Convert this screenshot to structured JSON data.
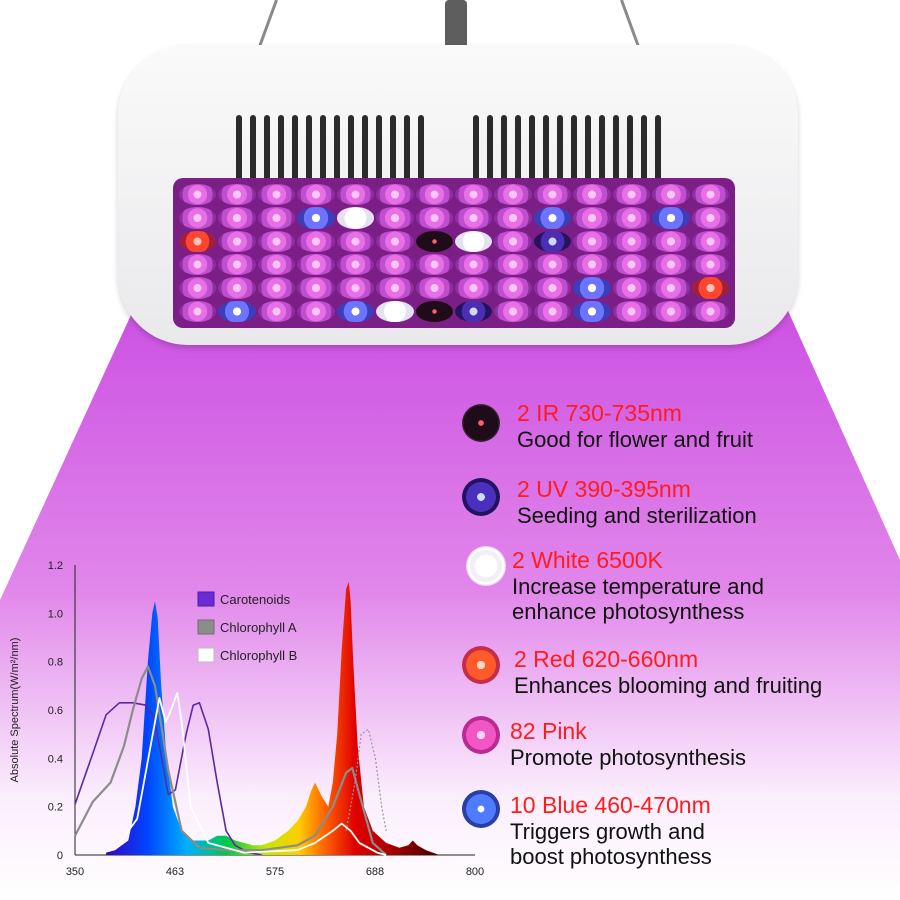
{
  "legend_items": [
    {
      "title": "2 IR  730-735nm",
      "lines": [
        "Good for flower and fruit"
      ],
      "icon": "ir-led-icon"
    },
    {
      "title": "2 UV  390-395nm",
      "lines": [
        "Seeding and sterilization"
      ],
      "icon": "uv-led-icon"
    },
    {
      "title": "2 White  6500K",
      "lines": [
        "Increase temperature and",
        "enhance photosynthess"
      ],
      "icon": "white-led-icon"
    },
    {
      "title": "2 Red  620-660nm",
      "lines": [
        "Enhances blooming and fruiting"
      ],
      "icon": "red-led-icon"
    },
    {
      "title": "82 Pink",
      "lines": [
        "Promote photosynthesis"
      ],
      "icon": "pink-led-icon"
    },
    {
      "title": "10 Blue  460-470nm",
      "lines": [
        "Triggers growth and",
        "boost  photosynthess"
      ],
      "icon": "blue-led-icon"
    }
  ],
  "colors": {
    "title_red": "#ff1c1c",
    "beam_top": "#c53fe0",
    "beam_bottom": "#ffffff",
    "carotenoids": "#5b2a9e",
    "chlorophyll_a": "#8c8c8c",
    "chlorophyll_b": "#ffffff"
  },
  "chart_data": {
    "type": "area",
    "title": "",
    "xlabel": "",
    "ylabel": "Absolute Spectrum(W/m²/nm)",
    "x_tick_labels": [
      "350",
      "463",
      "575",
      "688",
      "800"
    ],
    "y_tick_labels": [
      "0",
      "0.2",
      "0.4",
      "0.6",
      "0.8",
      "1.0",
      "1.2"
    ],
    "xlim": [
      350,
      800
    ],
    "ylim": [
      0,
      1.2
    ],
    "grid": false,
    "legend_position": "top-center",
    "series": [
      {
        "name": "Carotenoids",
        "kind": "line",
        "x": [
          350,
          370,
          385,
          400,
          415,
          430,
          438,
          445,
          455,
          463,
          475,
          483,
          490,
          500,
          510,
          520,
          530,
          545,
          560
        ],
        "y": [
          0.21,
          0.42,
          0.58,
          0.63,
          0.63,
          0.62,
          0.58,
          0.45,
          0.25,
          0.27,
          0.5,
          0.62,
          0.63,
          0.52,
          0.3,
          0.1,
          0.04,
          0.01,
          0.0
        ]
      },
      {
        "name": "Chlorophyll A",
        "kind": "line",
        "x": [
          350,
          370,
          390,
          405,
          415,
          425,
          432,
          440,
          455,
          470,
          490,
          520,
          560,
          600,
          620,
          640,
          655,
          662,
          670,
          685,
          700
        ],
        "y": [
          0.08,
          0.22,
          0.3,
          0.45,
          0.6,
          0.73,
          0.78,
          0.7,
          0.35,
          0.1,
          0.03,
          0.02,
          0.02,
          0.04,
          0.08,
          0.2,
          0.34,
          0.36,
          0.25,
          0.05,
          0.0
        ]
      },
      {
        "name": "Chlorophyll B",
        "kind": "line",
        "x": [
          400,
          420,
          440,
          445,
          452,
          458,
          465,
          470,
          480,
          500,
          540,
          600,
          620,
          640,
          650,
          660,
          670,
          690,
          700
        ],
        "y": [
          0.05,
          0.15,
          0.55,
          0.65,
          0.55,
          0.6,
          0.67,
          0.55,
          0.2,
          0.05,
          0.01,
          0.02,
          0.05,
          0.1,
          0.13,
          0.1,
          0.05,
          0.01,
          0.0
        ]
      },
      {
        "name": "",
        "kind": "led-spectrum",
        "x": [
          385,
          395,
          410,
          418,
          425,
          432,
          437,
          440,
          443,
          447,
          452,
          460,
          470,
          480,
          490,
          500,
          510,
          520,
          530,
          540,
          550,
          560,
          575,
          590,
          600,
          610,
          615,
          620,
          628,
          635,
          640,
          645,
          650,
          655,
          658,
          660,
          663,
          668,
          675,
          685,
          700,
          715,
          725,
          730,
          735,
          745,
          760
        ],
        "y": [
          0.01,
          0.02,
          0.06,
          0.2,
          0.4,
          0.8,
          1.0,
          1.05,
          0.98,
          0.7,
          0.45,
          0.2,
          0.1,
          0.06,
          0.06,
          0.06,
          0.08,
          0.08,
          0.06,
          0.05,
          0.04,
          0.04,
          0.06,
          0.1,
          0.14,
          0.2,
          0.26,
          0.3,
          0.24,
          0.2,
          0.3,
          0.5,
          0.85,
          1.1,
          1.13,
          1.05,
          0.8,
          0.45,
          0.2,
          0.1,
          0.05,
          0.03,
          0.04,
          0.06,
          0.04,
          0.02,
          0.0
        ]
      },
      {
        "name": "",
        "kind": "dotted-line",
        "x": [
          655,
          665,
          672,
          680,
          688,
          695,
          700
        ],
        "y": [
          0.1,
          0.3,
          0.5,
          0.52,
          0.4,
          0.2,
          0.1
        ]
      }
    ]
  }
}
